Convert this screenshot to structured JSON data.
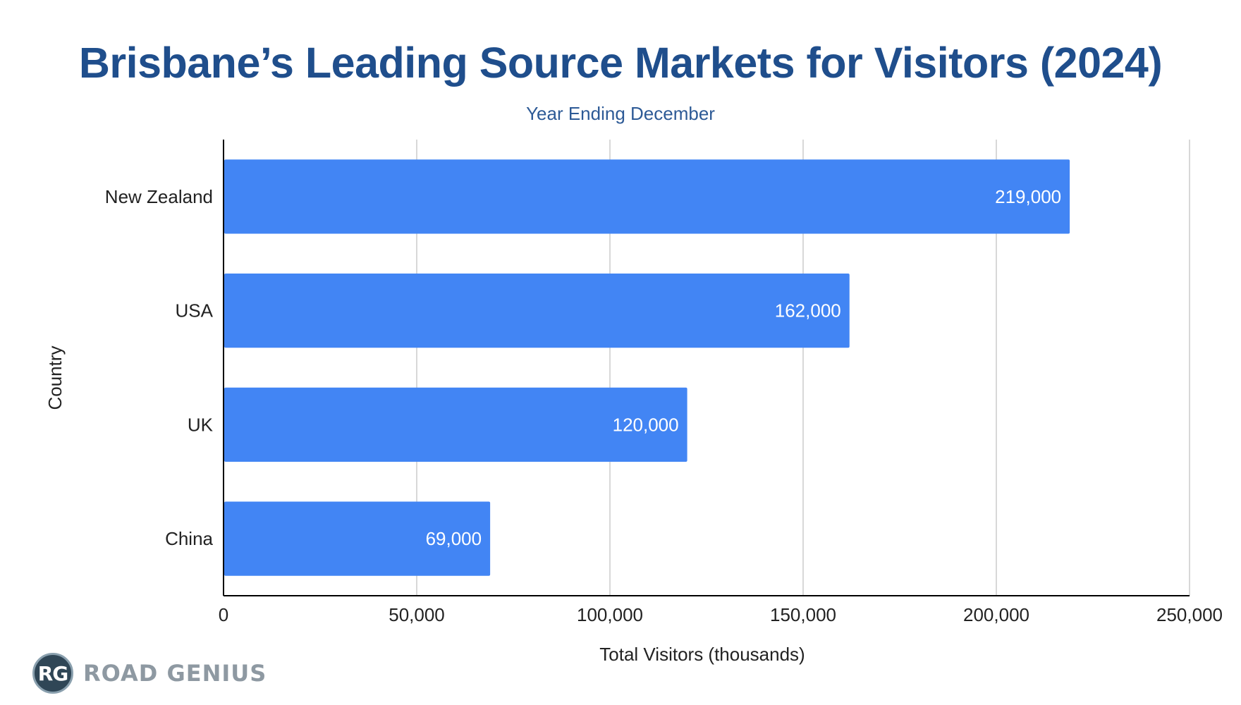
{
  "chart_data": {
    "type": "bar",
    "orientation": "horizontal",
    "title": "Brisbane’s Leading Source Markets for Visitors (2024)",
    "subtitle": "Year Ending December",
    "xlabel": "Total Visitors (thousands)",
    "ylabel": "Country",
    "categories": [
      "New Zealand",
      "USA",
      "UK",
      "China"
    ],
    "values": [
      219000,
      162000,
      120000,
      69000
    ],
    "data_labels": [
      "219,000",
      "162,000",
      "120,000",
      "69,000"
    ],
    "xlim": [
      0,
      250000
    ],
    "x_ticks": [
      0,
      50000,
      100000,
      150000,
      200000,
      250000
    ],
    "x_tick_labels": [
      "0",
      "50,000",
      "100,000",
      "150,000",
      "200,000",
      "250,000"
    ],
    "grid": true,
    "legend": "none",
    "colors": {
      "bar": "#4285f4",
      "bar_label": "#ffffff",
      "grid": "#cccccc",
      "axis": "#000000",
      "title": "#1f4e8c",
      "subtitle": "#2d5a96"
    }
  },
  "branding": {
    "logo_badge": "RG",
    "logo_text": "ROAD GENIUS"
  }
}
